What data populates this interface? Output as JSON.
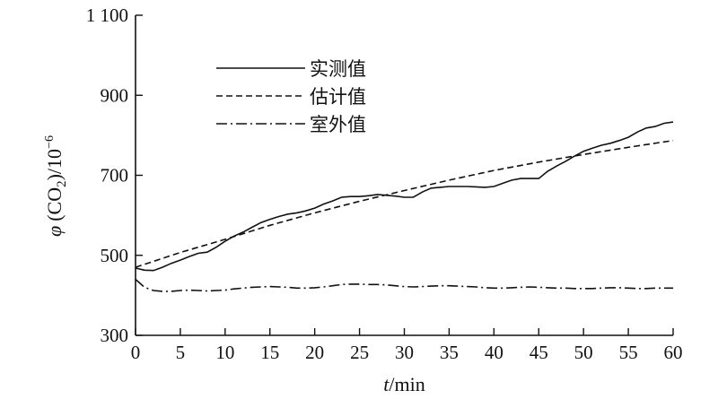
{
  "chart_data": {
    "type": "line",
    "xlabel_var": "t",
    "xlabel_unit": "/min",
    "ylabel_symbol": "φ",
    "ylabel_paren_open": "(CO",
    "ylabel_sub": "2",
    "ylabel_paren_close": ")/10",
    "ylabel_sup": "−6",
    "xlim": [
      0,
      60
    ],
    "ylim": [
      300,
      1100
    ],
    "xticks": [
      0,
      5,
      10,
      15,
      20,
      25,
      30,
      35,
      40,
      45,
      50,
      55,
      60
    ],
    "yticks": [
      300,
      500,
      700,
      900,
      1100
    ],
    "ytick_labels": [
      "300",
      "500",
      "700",
      "900",
      "1 100"
    ],
    "legend_position": "top-left",
    "series": [
      {
        "name": "实测值",
        "style": "solid",
        "x": [
          0,
          1,
          2,
          3,
          4,
          5,
          6,
          7,
          8,
          9,
          10,
          11,
          12,
          13,
          14,
          15,
          16,
          17,
          18,
          19,
          20,
          21,
          22,
          23,
          24,
          25,
          26,
          27,
          28,
          29,
          30,
          31,
          32,
          33,
          34,
          35,
          36,
          37,
          38,
          39,
          40,
          41,
          42,
          43,
          44,
          45,
          46,
          47,
          48,
          49,
          50,
          51,
          52,
          53,
          54,
          55,
          56,
          57,
          58,
          59,
          60
        ],
        "y": [
          468,
          463,
          462,
          470,
          480,
          488,
          497,
          505,
          508,
          520,
          535,
          548,
          558,
          570,
          582,
          590,
          597,
          603,
          606,
          611,
          618,
          628,
          636,
          645,
          647,
          647,
          649,
          652,
          650,
          648,
          645,
          645,
          658,
          668,
          670,
          672,
          672,
          672,
          671,
          670,
          672,
          680,
          688,
          692,
          692,
          692,
          710,
          723,
          735,
          748,
          760,
          768,
          775,
          780,
          787,
          795,
          808,
          818,
          822,
          830,
          833
        ]
      },
      {
        "name": "估计值",
        "style": "dashed",
        "x": [
          0,
          5,
          10,
          15,
          20,
          25,
          30,
          35,
          40,
          45,
          50,
          55,
          60
        ],
        "y": [
          470,
          507,
          540,
          575,
          606,
          635,
          662,
          688,
          712,
          733,
          752,
          770,
          787
        ]
      },
      {
        "name": "室外值",
        "style": "dashdot",
        "x": [
          0,
          1,
          2,
          3,
          4,
          5,
          6,
          7,
          8,
          9,
          10,
          11,
          12,
          13,
          14,
          15,
          16,
          17,
          18,
          19,
          20,
          21,
          22,
          23,
          24,
          25,
          26,
          27,
          28,
          29,
          30,
          31,
          32,
          33,
          34,
          35,
          36,
          37,
          38,
          39,
          40,
          41,
          42,
          43,
          44,
          45,
          46,
          47,
          48,
          49,
          50,
          51,
          52,
          53,
          54,
          55,
          56,
          57,
          58,
          59,
          60
        ],
        "y": [
          440,
          420,
          412,
          410,
          410,
          412,
          413,
          412,
          411,
          412,
          413,
          416,
          418,
          420,
          421,
          422,
          421,
          420,
          418,
          418,
          419,
          421,
          424,
          427,
          428,
          428,
          427,
          427,
          426,
          424,
          422,
          421,
          422,
          423,
          424,
          424,
          423,
          422,
          421,
          419,
          418,
          418,
          419,
          420,
          421,
          420,
          419,
          418,
          418,
          417,
          417,
          417,
          418,
          419,
          419,
          418,
          417,
          417,
          418,
          418,
          418
        ]
      }
    ]
  }
}
